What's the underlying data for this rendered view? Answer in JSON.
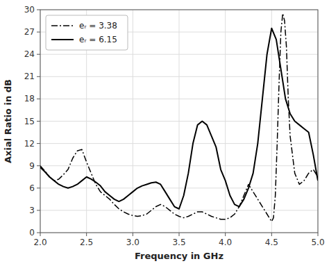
{
  "chart_data": {
    "type": "line",
    "title": "",
    "xlabel": "Frequency in GHz",
    "ylabel": "Axial Ratio in dB",
    "xlim": [
      2,
      5
    ],
    "ylim": [
      0,
      30
    ],
    "xticks": [
      {
        "value": 2,
        "label": "2.0"
      },
      {
        "value": 2.5,
        "label": "2.5"
      },
      {
        "value": 3,
        "label": "3.0"
      },
      {
        "value": 3.5,
        "label": "3.5"
      },
      {
        "value": 4,
        "label": "4.0"
      },
      {
        "value": 4.5,
        "label": "4.5"
      },
      {
        "value": 5,
        "label": "5.0"
      }
    ],
    "yticks": [
      0,
      3,
      6,
      9,
      12,
      15,
      18,
      21,
      24,
      27,
      30
    ],
    "grid": true,
    "legend": "upper left",
    "series": [
      {
        "name": "eᵣ = 3.38",
        "color": "#000000",
        "line_style": "dash-dot",
        "x": [
          2.0,
          2.05,
          2.1,
          2.15,
          2.2,
          2.25,
          2.3,
          2.35,
          2.4,
          2.45,
          2.5,
          2.55,
          2.6,
          2.65,
          2.7,
          2.75,
          2.8,
          2.85,
          2.9,
          2.95,
          3.0,
          3.05,
          3.1,
          3.15,
          3.2,
          3.25,
          3.3,
          3.35,
          3.4,
          3.45,
          3.5,
          3.55,
          3.6,
          3.65,
          3.7,
          3.75,
          3.8,
          3.85,
          3.9,
          3.95,
          4.0,
          4.05,
          4.1,
          4.15,
          4.2,
          4.25,
          4.3,
          4.35,
          4.4,
          4.45,
          4.5,
          4.52,
          4.54,
          4.56,
          4.58,
          4.6,
          4.62,
          4.64,
          4.66,
          4.68,
          4.7,
          4.75,
          4.8,
          4.85,
          4.9,
          4.95,
          5.0
        ],
        "values": [
          9.0,
          8.3,
          7.5,
          7.0,
          7.2,
          7.8,
          8.5,
          10.0,
          11.0,
          11.2,
          9.5,
          8.0,
          6.5,
          5.5,
          5.0,
          4.5,
          3.8,
          3.2,
          2.8,
          2.5,
          2.3,
          2.2,
          2.3,
          2.5,
          3.0,
          3.5,
          3.8,
          3.5,
          3.0,
          2.5,
          2.2,
          2.0,
          2.2,
          2.5,
          2.8,
          2.8,
          2.5,
          2.2,
          2.0,
          1.8,
          1.8,
          2.0,
          2.5,
          3.5,
          5.0,
          6.5,
          5.5,
          4.5,
          3.5,
          2.5,
          1.5,
          2.0,
          5.0,
          12.0,
          20.0,
          27.0,
          29.5,
          28.5,
          25.0,
          18.0,
          13.0,
          8.0,
          6.5,
          7.0,
          8.0,
          8.5,
          7.5
        ]
      },
      {
        "name": "eᵣ = 6.15",
        "color": "#000000",
        "line_style": "solid",
        "x": [
          2.0,
          2.05,
          2.1,
          2.15,
          2.2,
          2.25,
          2.3,
          2.35,
          2.4,
          2.45,
          2.5,
          2.55,
          2.6,
          2.65,
          2.7,
          2.75,
          2.8,
          2.85,
          2.9,
          2.95,
          3.0,
          3.05,
          3.1,
          3.15,
          3.2,
          3.25,
          3.3,
          3.35,
          3.4,
          3.45,
          3.5,
          3.55,
          3.6,
          3.65,
          3.7,
          3.75,
          3.8,
          3.85,
          3.9,
          3.95,
          4.0,
          4.05,
          4.1,
          4.15,
          4.2,
          4.25,
          4.3,
          4.35,
          4.4,
          4.45,
          4.5,
          4.55,
          4.6,
          4.65,
          4.7,
          4.75,
          4.8,
          4.85,
          4.9,
          4.95,
          5.0
        ],
        "values": [
          8.8,
          8.2,
          7.5,
          7.0,
          6.5,
          6.2,
          6.0,
          6.2,
          6.5,
          7.0,
          7.5,
          7.2,
          6.8,
          6.3,
          5.5,
          5.0,
          4.5,
          4.2,
          4.5,
          5.0,
          5.5,
          6.0,
          6.3,
          6.5,
          6.7,
          6.8,
          6.5,
          5.5,
          4.5,
          3.5,
          3.2,
          5.0,
          8.0,
          12.0,
          14.5,
          15.0,
          14.5,
          13.0,
          11.5,
          8.5,
          7.0,
          5.0,
          3.8,
          3.5,
          4.5,
          6.0,
          8.0,
          12.0,
          18.0,
          24.0,
          27.5,
          26.0,
          22.0,
          18.0,
          16.0,
          15.0,
          14.5,
          14.0,
          13.5,
          10.5,
          7.0
        ]
      }
    ]
  }
}
